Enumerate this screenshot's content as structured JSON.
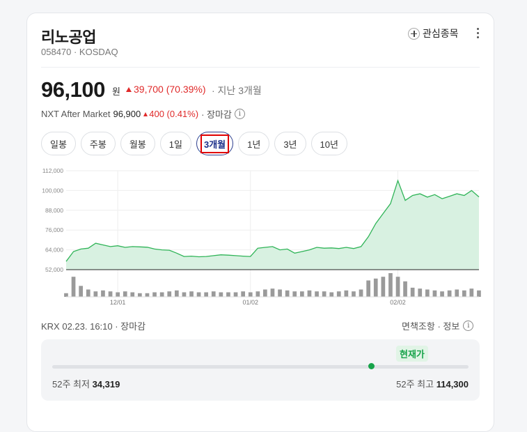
{
  "stock": {
    "name": "리노공업",
    "code_market": "058470 · KOSDAQ",
    "price": "96,100",
    "price_unit": "원",
    "change": "39,700 (70.39%)",
    "period": "· 지난 3개월"
  },
  "header": {
    "watch_label": "관심종목"
  },
  "nxt": {
    "label": "NXT After Market",
    "price": "96,900",
    "change": "400 (0.41%)",
    "status": "· 장마감"
  },
  "tabs": [
    {
      "label": "일봉"
    },
    {
      "label": "주봉"
    },
    {
      "label": "월봉"
    },
    {
      "label": "1일"
    },
    {
      "label": "3개월",
      "active": true
    },
    {
      "label": "1년"
    },
    {
      "label": "3년"
    },
    {
      "label": "10년"
    }
  ],
  "chart_data": {
    "type": "area",
    "y_ticks": [
      "112,000",
      "100,000",
      "88,000",
      "76,000",
      "64,000",
      "52,000"
    ],
    "y_tick_values": [
      112000,
      100000,
      88000,
      76000,
      64000,
      52000
    ],
    "ylim": [
      52000,
      112000
    ],
    "x_ticks": [
      "12/01",
      "01/02",
      "02/02"
    ],
    "line_color": "#2fb457",
    "fill_color": "#d8f1e1",
    "price_series": [
      57000,
      63000,
      64500,
      65000,
      68000,
      67000,
      66000,
      66500,
      65500,
      66000,
      65800,
      65600,
      64500,
      64000,
      63800,
      62000,
      60000,
      60200,
      59800,
      60000,
      60500,
      61000,
      60800,
      60500,
      60200,
      60000,
      65000,
      65500,
      66000,
      64000,
      64500,
      62000,
      63000,
      64000,
      65500,
      65000,
      65200,
      64800,
      65500,
      64800,
      66000,
      72000,
      80000,
      86000,
      92000,
      106000,
      94000,
      97000,
      98000,
      96000,
      97500,
      95000,
      96500,
      98000,
      97000,
      100000,
      96100
    ],
    "volume_series": [
      4,
      22,
      12,
      8,
      6,
      7,
      6,
      5,
      6,
      5,
      4,
      4,
      5,
      5,
      6,
      7,
      5,
      6,
      5,
      5,
      6,
      5,
      5,
      5,
      6,
      5,
      6,
      8,
      9,
      8,
      7,
      6,
      6,
      7,
      6,
      6,
      5,
      6,
      7,
      6,
      8,
      18,
      20,
      22,
      26,
      22,
      17,
      10,
      9,
      8,
      7,
      6,
      7,
      8,
      7,
      9,
      7
    ]
  },
  "footer": {
    "left": "KRX 02.23. 16:10 · 장마감",
    "right": "면책조항 · 정보"
  },
  "range": {
    "current_label": "현재가",
    "low_label": "52주 최저",
    "low_value": "34,319",
    "high_label": "52주 최고",
    "high_value": "114,300",
    "current_fraction": 0.77
  }
}
